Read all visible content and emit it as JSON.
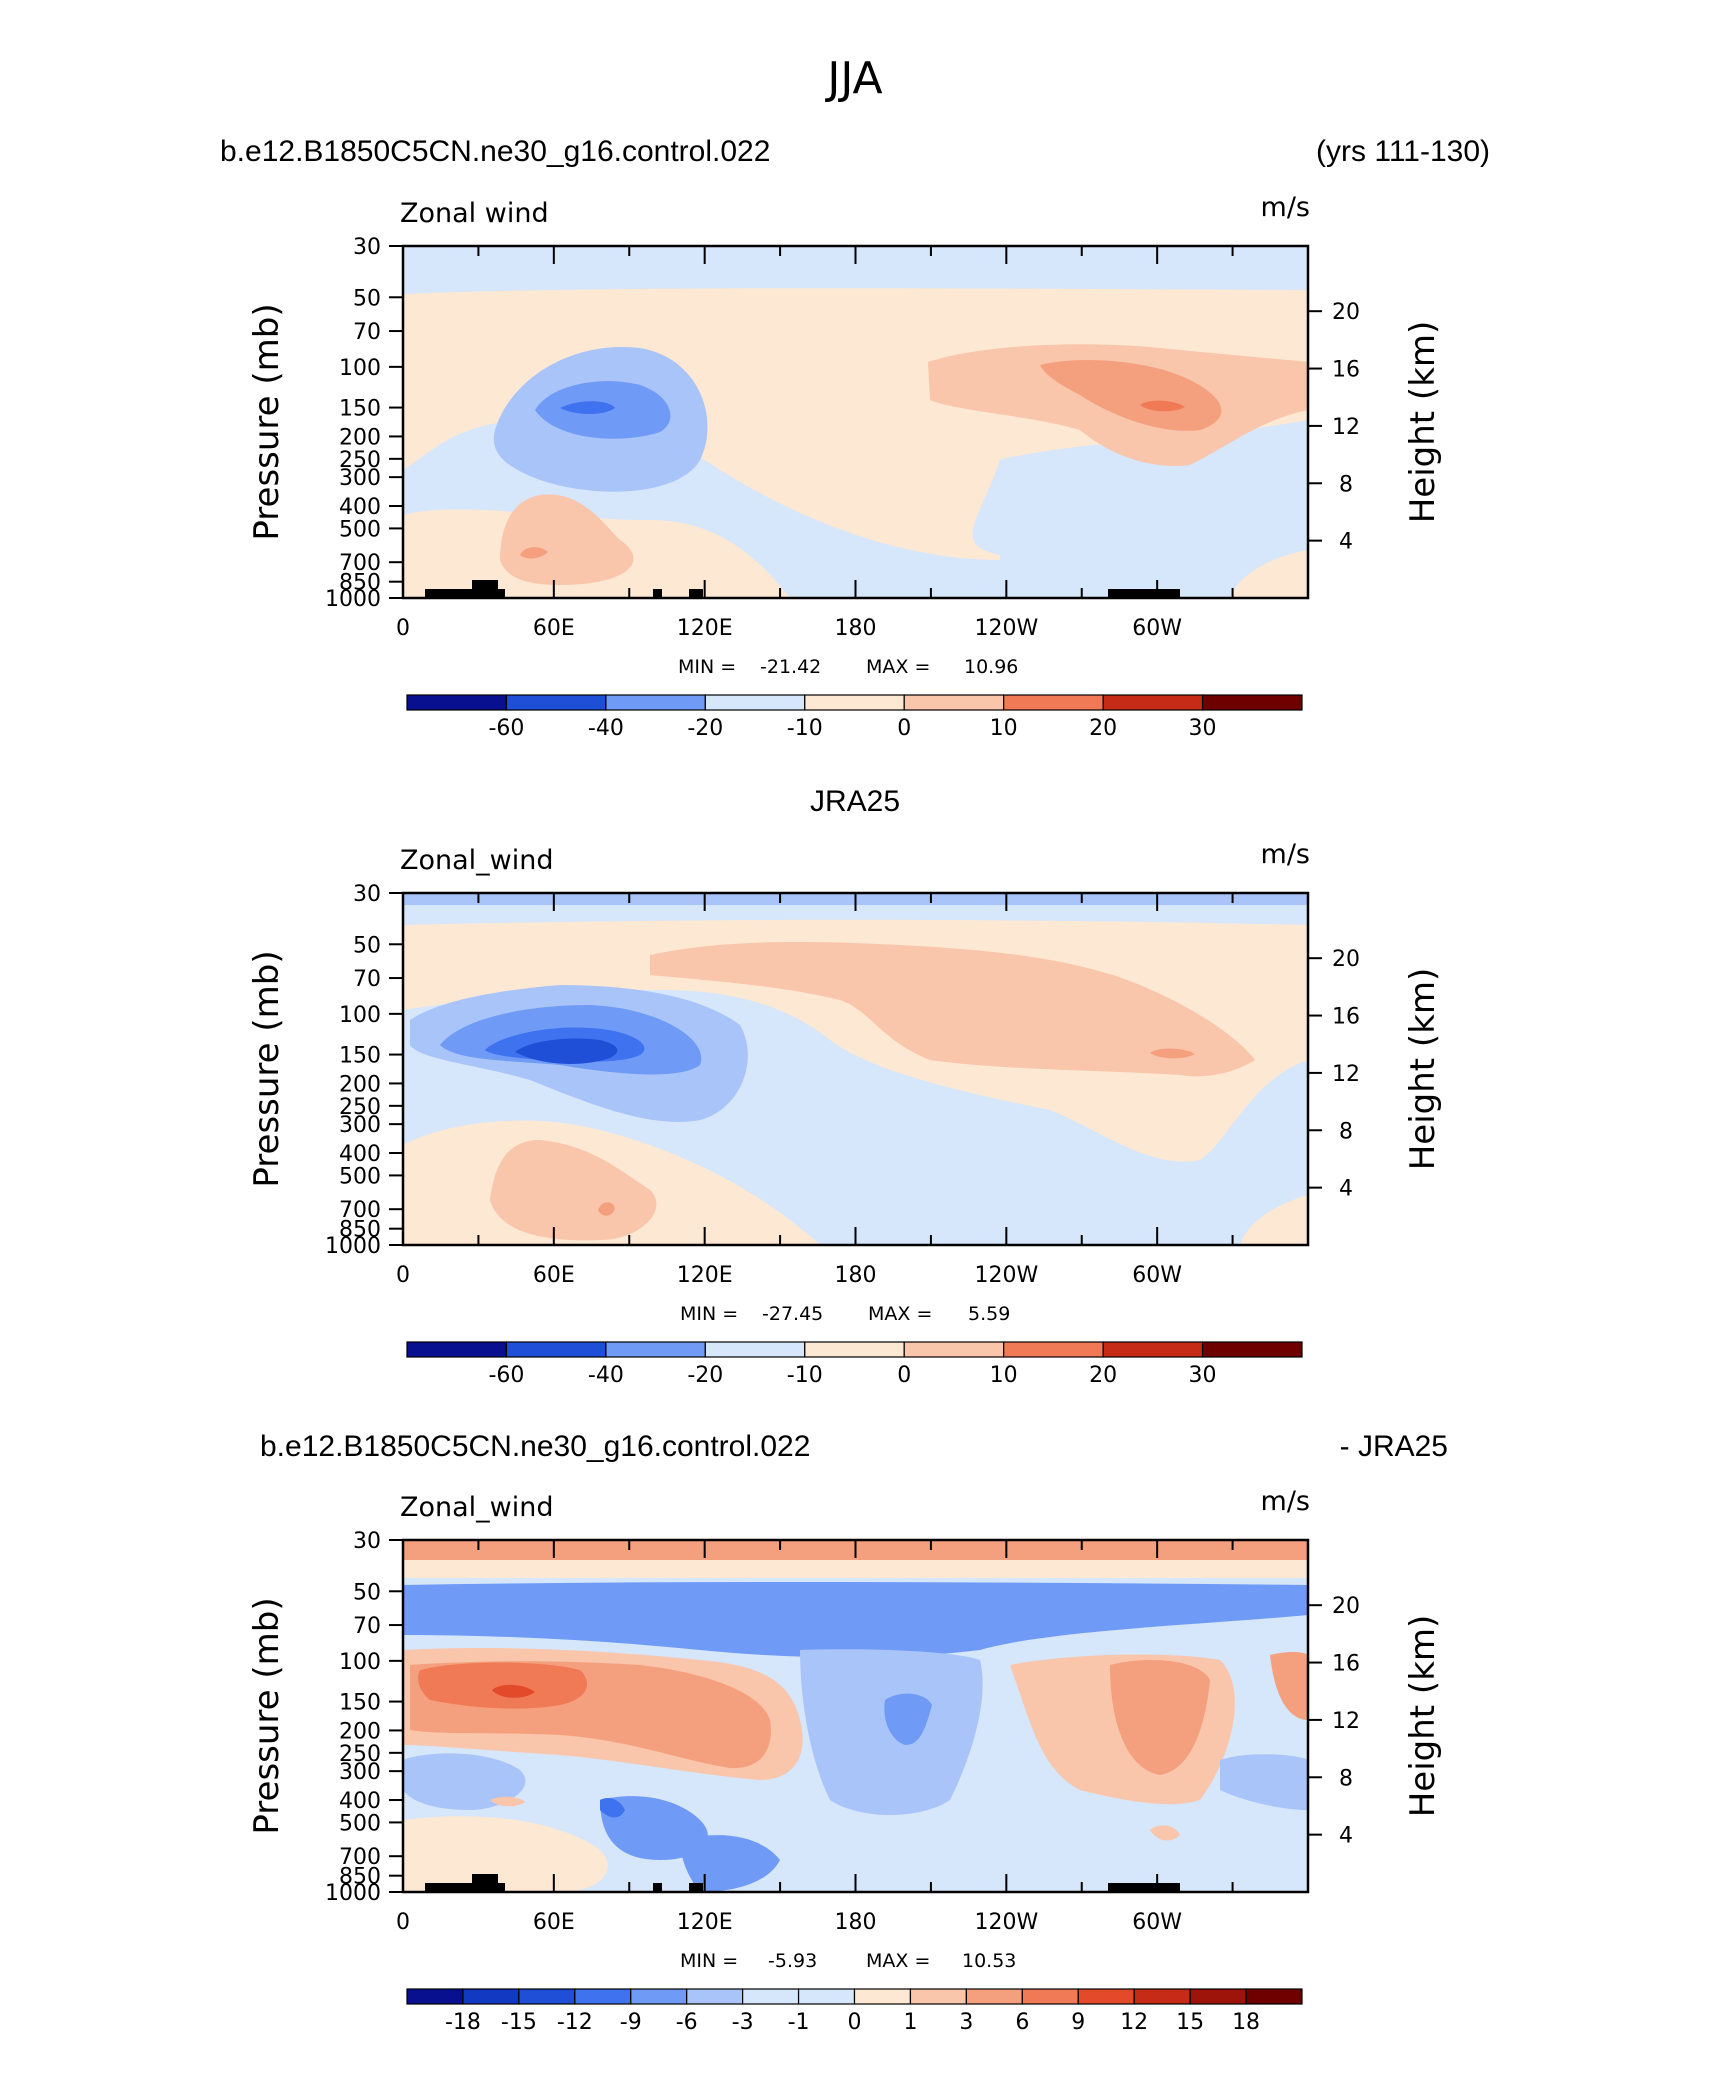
{
  "main_title": "JJA",
  "chart_data": [
    {
      "type": "heatmap",
      "title": "Zonal wind",
      "units": "m/s",
      "header_left": "b.e12.B1850C5CN.ne30_g16.control.022",
      "header_right": "(yrs 111-130)",
      "xlabel": "",
      "ylabel": "Pressure (mb)",
      "y2label": "Height (km)",
      "x_ticks": [
        "0",
        "60E",
        "120E",
        "180",
        "120W",
        "60W"
      ],
      "y_ticks": [
        "30",
        "50",
        "70",
        "100",
        "150",
        "200",
        "250",
        "300",
        "400",
        "500",
        "700",
        "850",
        "1000"
      ],
      "y2_ticks": [
        "20",
        "16",
        "12",
        "8",
        "4"
      ],
      "ylim": [
        1000,
        30
      ],
      "stats_min_label": "MIN =",
      "min": "-21.42",
      "stats_max_label": "MAX =",
      "max": "10.96",
      "colorbar_labels": [
        "-60",
        "-40",
        "-20",
        "-10",
        "0",
        "10",
        "20",
        "30"
      ]
    },
    {
      "type": "heatmap",
      "title": "Zonal_wind",
      "units": "m/s",
      "header_center": "JRA25",
      "xlabel": "",
      "ylabel": "Pressure (mb)",
      "y2label": "Height (km)",
      "x_ticks": [
        "0",
        "60E",
        "120E",
        "180",
        "120W",
        "60W"
      ],
      "y_ticks": [
        "30",
        "50",
        "70",
        "100",
        "150",
        "200",
        "250",
        "300",
        "400",
        "500",
        "700",
        "850",
        "1000"
      ],
      "y2_ticks": [
        "20",
        "16",
        "12",
        "8",
        "4"
      ],
      "ylim": [
        1000,
        30
      ],
      "stats_min_label": "MIN =",
      "min": "-27.45",
      "stats_max_label": "MAX =",
      "max": "5.59",
      "colorbar_labels": [
        "-60",
        "-40",
        "-20",
        "-10",
        "0",
        "10",
        "20",
        "30"
      ]
    },
    {
      "type": "heatmap",
      "title": "Zonal_wind",
      "units": "m/s",
      "header_left": "b.e12.B1850C5CN.ne30_g16.control.022",
      "header_right": "- JRA25",
      "xlabel": "",
      "ylabel": "Pressure (mb)",
      "y2label": "Height (km)",
      "x_ticks": [
        "0",
        "60E",
        "120E",
        "180",
        "120W",
        "60W"
      ],
      "y_ticks": [
        "30",
        "50",
        "70",
        "100",
        "150",
        "200",
        "250",
        "300",
        "400",
        "500",
        "700",
        "850",
        "1000"
      ],
      "y2_ticks": [
        "20",
        "16",
        "12",
        "8",
        "4"
      ],
      "ylim": [
        1000,
        30
      ],
      "stats_min_label": "MIN =",
      "min": "-5.93",
      "stats_max_label": "MAX =",
      "max": "10.53",
      "colorbar_labels": [
        "-18",
        "-15",
        "-12",
        "-9",
        "-6",
        "-3",
        "-1",
        "0",
        "1",
        "3",
        "6",
        "9",
        "12",
        "15",
        "18"
      ]
    }
  ],
  "colors": {
    "c_n5": "#0b2aa6",
    "c_n4": "#1f4fd6",
    "c_n3": "#3f72ee",
    "c_n2": "#6f9af5",
    "c_n1": "#a9c4f8",
    "c_n0": "#d6e6fb",
    "c_p0": "#fde8d4",
    "c_p1": "#f9c5ab",
    "c_p2": "#f4a07f",
    "c_p3": "#f07a55",
    "c_p4": "#e24a2a",
    "c_p5": "#c52b16",
    "c_p6": "#9e130a",
    "c_p7": "#6e0000",
    "c_dark_blue": "#08108f",
    "c_mid_blue": "#1239c2",
    "c_topo": "#000000"
  }
}
